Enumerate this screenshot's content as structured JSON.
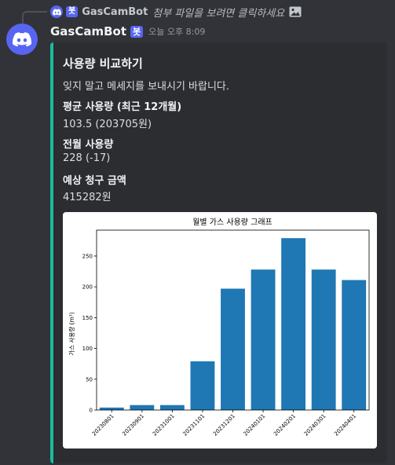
{
  "reply": {
    "author": "GasCamBot",
    "bot_tag": "봇",
    "text": "첨부 파일을 보려면 클릭하세요",
    "icon": "image-icon"
  },
  "message": {
    "author": "GasCamBot",
    "bot_tag": "봇",
    "timestamp": "오늘 오후 8:09",
    "avatar_icon": "discord-logo-icon"
  },
  "embed": {
    "accent_color": "#1abc9c",
    "title": "사용량 비교하기",
    "description": "잊지 말고 메세지를 보내시기 바랍니다.",
    "fields": [
      {
        "name": "평균 사용량 (최근 12개월)",
        "value": "103.5 (203705원)"
      },
      {
        "name": "전월 사용량",
        "value": "228 (-17)"
      },
      {
        "name": "예상 청구 금액",
        "value": "415282원"
      }
    ]
  },
  "chart_data": {
    "type": "bar",
    "title": "월별 가스 사용량 그래프",
    "xlabel": "",
    "ylabel": "가스 사용량 (m³)",
    "categories": [
      "20230801",
      "20230901",
      "20231001",
      "20231101",
      "20231201",
      "20240101",
      "20240201",
      "20240301",
      "20240401"
    ],
    "values": [
      4,
      8,
      8,
      79,
      197,
      228,
      279,
      228,
      211
    ],
    "yticks": [
      0,
      50,
      100,
      150,
      200,
      250
    ],
    "ylim": [
      0,
      292
    ],
    "bar_color": "#1f77b4",
    "grid": false
  }
}
